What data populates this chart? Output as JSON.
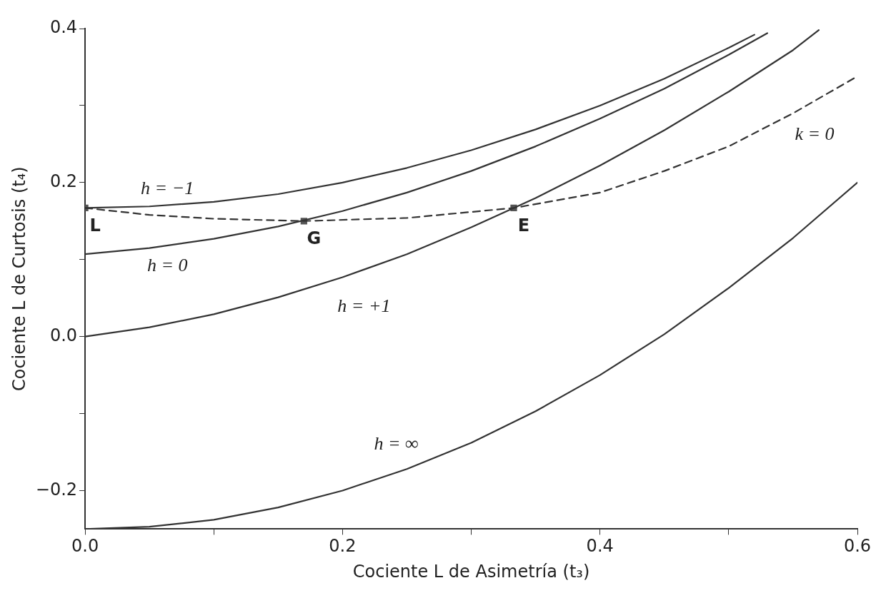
{
  "chart_data": {
    "type": "line",
    "xlabel": "Cociente L de Asimetría (t₃)",
    "ylabel": "Cociente L de Curtosis (t₄)",
    "xlim": [
      0,
      0.6
    ],
    "ylim": [
      -0.25,
      0.4
    ],
    "xticks": [
      {
        "value": 0,
        "label": "0.0"
      },
      {
        "value": 0.1,
        "label": null
      },
      {
        "value": 0.2,
        "label": "0.2"
      },
      {
        "value": 0.3,
        "label": null
      },
      {
        "value": 0.4,
        "label": "0.4"
      },
      {
        "value": 0.5,
        "label": null
      },
      {
        "value": 0.6,
        "label": "0.6"
      }
    ],
    "yticks": [
      {
        "value": -0.2,
        "label": "−0.2"
      },
      {
        "value": -0.1,
        "label": null
      },
      {
        "value": 0,
        "label": "0.0"
      },
      {
        "value": 0.1,
        "label": null
      },
      {
        "value": 0.2,
        "label": "0.2"
      },
      {
        "value": 0.3,
        "label": null
      },
      {
        "value": 0.4,
        "label": "0.4"
      }
    ],
    "grid": false,
    "legend": false,
    "marker": "none",
    "line_style": "solid",
    "series": [
      {
        "name": "h = −1",
        "color": "#333333",
        "x": [
          0,
          0.05,
          0.1,
          0.15,
          0.2,
          0.25,
          0.3,
          0.35,
          0.4,
          0.45,
          0.5,
          0.52
        ],
        "values": [
          0.167,
          0.169,
          0.175,
          0.185,
          0.2,
          0.219,
          0.242,
          0.269,
          0.3,
          0.335,
          0.375,
          0.392
        ]
      },
      {
        "name": "h = 0",
        "color": "#333333",
        "x": [
          0,
          0.05,
          0.1,
          0.15,
          0.2,
          0.25,
          0.3,
          0.35,
          0.4,
          0.45,
          0.5,
          0.53
        ],
        "values": [
          0.107,
          0.115,
          0.127,
          0.143,
          0.163,
          0.187,
          0.215,
          0.247,
          0.283,
          0.322,
          0.366,
          0.394
        ]
      },
      {
        "name": "h = +1",
        "color": "#333333",
        "x": [
          0,
          0.05,
          0.1,
          0.15,
          0.2,
          0.25,
          0.3,
          0.333,
          0.35,
          0.4,
          0.45,
          0.5,
          0.55,
          0.57
        ],
        "values": [
          0,
          0.012,
          0.029,
          0.051,
          0.077,
          0.107,
          0.142,
          0.167,
          0.18,
          0.222,
          0.268,
          0.318,
          0.372,
          0.398
        ]
      },
      {
        "name": "h = ∞",
        "color": "#333333",
        "x": [
          0,
          0.05,
          0.1,
          0.15,
          0.2,
          0.25,
          0.3,
          0.35,
          0.4,
          0.45,
          0.5,
          0.55,
          0.6
        ],
        "values": [
          -0.25,
          -0.247,
          -0.238,
          -0.222,
          -0.2,
          -0.172,
          -0.138,
          -0.097,
          -0.05,
          0.003,
          0.063,
          0.128,
          0.2
        ]
      },
      {
        "name": "k = 0",
        "color": "#333333",
        "line_style": "dashed",
        "x": [
          0,
          0.05,
          0.1,
          0.17,
          0.25,
          0.333,
          0.4,
          0.45,
          0.5,
          0.55,
          0.6
        ],
        "values": [
          0.167,
          0.158,
          0.153,
          0.15,
          0.154,
          0.167,
          0.187,
          0.215,
          0.247,
          0.29,
          0.338
        ]
      },
      {
        "type": "scatter",
        "color": "#555555",
        "marker": "square",
        "x": [
          0,
          0.17,
          0.333
        ],
        "values": [
          0.167,
          0.15,
          0.167
        ],
        "value_labels": [
          "L",
          "G",
          "E"
        ]
      }
    ]
  }
}
